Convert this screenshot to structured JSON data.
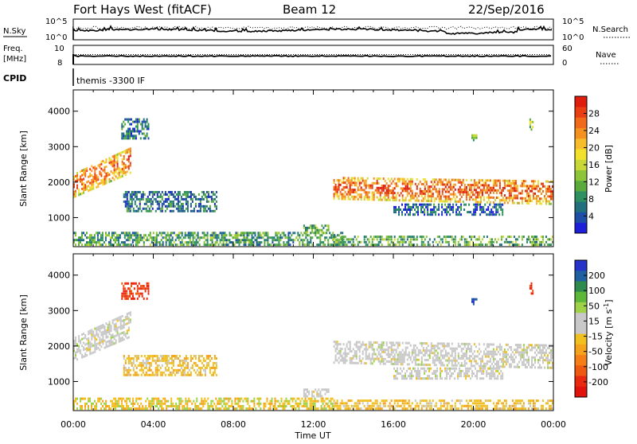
{
  "header": {
    "title": "Fort Hays West (fitACF)",
    "beam": "Beam 12",
    "date": "22/Sep/2016"
  },
  "top_panels": {
    "nsky_label": "N.Sky",
    "nsearch_label": "N.Search",
    "nsky_ticks": [
      "10^5",
      "10^0"
    ],
    "nsearch_ticks": [
      "10^5",
      "10^0"
    ],
    "freq_label": "Freq. [MHz]",
    "freq_ticks": [
      "10",
      "8"
    ],
    "nave_label": "Nave",
    "nave_ticks": [
      "60",
      "0"
    ],
    "cpid_label": "CPID",
    "cpid_value": "themis -3300 IF"
  },
  "chart_data": [
    {
      "type": "heatmap",
      "name": "power",
      "ylabel": "Slant Range [km]",
      "xlabel": "",
      "ylim": [
        180,
        4600
      ],
      "xlim": [
        0,
        24
      ],
      "yticks": [
        1000,
        2000,
        3000,
        4000
      ],
      "colorbar": {
        "label": "Power [dB]",
        "ticks": [
          28,
          24,
          20,
          16,
          12,
          8,
          4
        ],
        "colors": [
          "#1d20d8",
          "#1e4ea6",
          "#22707e",
          "#2e9060",
          "#5aab3c",
          "#8cc43a",
          "#c9d836",
          "#f2e12c",
          "#f7bc2a",
          "#f5921f",
          "#f06a1a",
          "#ea3f13",
          "#e01e0e"
        ]
      },
      "regions": [
        {
          "t0": 0.0,
          "t1": 2.9,
          "r0": 1550,
          "r1": 2250,
          "r0_end": 2250,
          "r1_end": 3000,
          "level": 0.55
        },
        {
          "t0": 2.4,
          "t1": 3.8,
          "r0": 3200,
          "r1": 3800,
          "level": 0.2
        },
        {
          "t0": 2.5,
          "t1": 7.2,
          "r0": 1150,
          "r1": 1750,
          "level": 0.2
        },
        {
          "t0": 0.0,
          "t1": 13.5,
          "r0": 200,
          "r1": 600,
          "level": 0.3
        },
        {
          "t0": 11.5,
          "t1": 12.8,
          "r0": 550,
          "r1": 800,
          "level": 0.35
        },
        {
          "t0": 13.0,
          "t1": 24.0,
          "r0": 1500,
          "r1": 2150,
          "r0_end": 1350,
          "r1_end": 2050,
          "level": 0.6
        },
        {
          "t0": 16.0,
          "t1": 21.5,
          "r0": 1050,
          "r1": 1400,
          "level": 0.15
        },
        {
          "t0": 13.0,
          "t1": 24.0,
          "r0": 200,
          "r1": 500,
          "level": 0.35
        },
        {
          "t0": 19.9,
          "t1": 20.2,
          "r0": 3150,
          "r1": 3350,
          "level": 0.4
        },
        {
          "t0": 22.8,
          "t1": 23.0,
          "r0": 3450,
          "r1": 3800,
          "level": 0.45
        }
      ]
    },
    {
      "type": "heatmap",
      "name": "velocity",
      "ylabel": "Slant Range [km]",
      "xlabel": "Time UT",
      "ylim": [
        180,
        4600
      ],
      "xlim": [
        0,
        24
      ],
      "yticks": [
        1000,
        2000,
        3000,
        4000
      ],
      "xticks": [
        "00:00",
        "04:00",
        "08:00",
        "12:00",
        "16:00",
        "20:00",
        "00:00"
      ],
      "colorbar": {
        "label": "Velocity [m s-1]",
        "ticks": [
          200,
          100,
          50,
          15,
          -15,
          -50,
          -100,
          -200
        ],
        "colors": [
          "#2633c8",
          "#2060a0",
          "#2f8a4e",
          "#5db83a",
          "#9fd247",
          "#c8c8c8",
          "#c8c8c8",
          "#f0c020",
          "#f5a21c",
          "#f57f16",
          "#ee5a12",
          "#e82a10",
          "#e0140c"
        ]
      },
      "regions": [
        {
          "t0": 0.0,
          "t1": 2.9,
          "r0": 1550,
          "r1": 2250,
          "r0_end": 2250,
          "r1_end": 3000,
          "vel": "grey"
        },
        {
          "t0": 2.5,
          "t1": 7.2,
          "r0": 1150,
          "r1": 1750,
          "vel": "orange"
        },
        {
          "t0": 0.0,
          "t1": 13.0,
          "r0": 200,
          "r1": 550,
          "vel": "orange-green"
        },
        {
          "t0": 11.5,
          "t1": 12.8,
          "r0": 550,
          "r1": 800,
          "vel": "grey"
        },
        {
          "t0": 13.0,
          "t1": 24.0,
          "r0": 1500,
          "r1": 2150,
          "r0_end": 1350,
          "r1_end": 2050,
          "vel": "grey"
        },
        {
          "t0": 16.0,
          "t1": 21.5,
          "r0": 1050,
          "r1": 1400,
          "vel": "grey"
        },
        {
          "t0": 13.0,
          "t1": 24.0,
          "r0": 200,
          "r1": 500,
          "vel": "orange"
        },
        {
          "t0": 2.4,
          "t1": 3.8,
          "r0": 3300,
          "r1": 3800,
          "vel": "red"
        },
        {
          "t0": 19.9,
          "t1": 20.2,
          "r0": 3150,
          "r1": 3350,
          "vel": "blue"
        },
        {
          "t0": 22.8,
          "t1": 23.0,
          "r0": 3450,
          "r1": 3800,
          "vel": "red"
        }
      ]
    }
  ]
}
